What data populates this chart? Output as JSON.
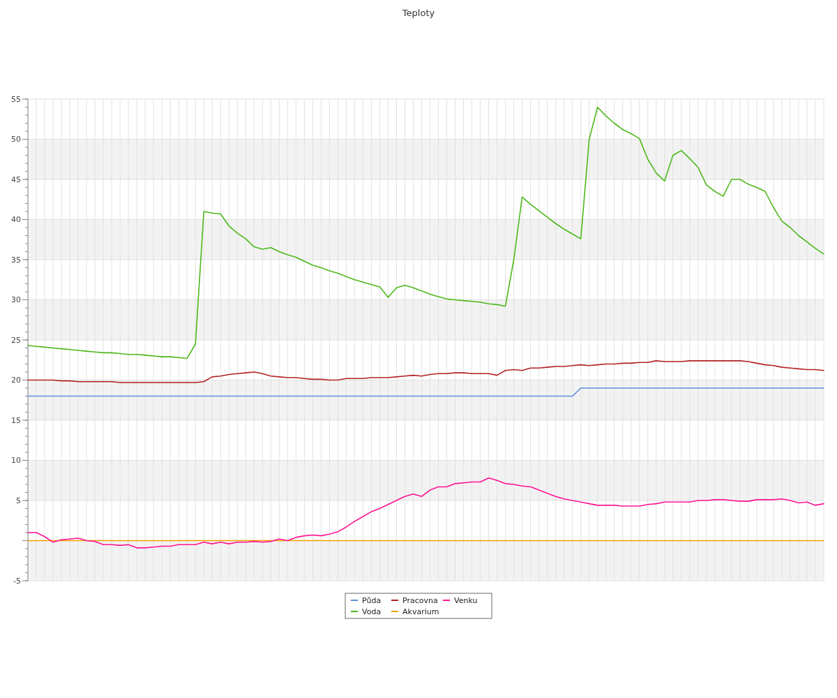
{
  "chart_data": {
    "type": "line",
    "title": "Teploty",
    "categories": [
      null,
      null,
      null,
      null,
      null,
      null,
      null,
      null,
      null,
      null,
      null,
      null,
      null,
      null,
      null,
      null,
      null,
      null,
      null,
      null,
      null,
      null,
      null,
      null,
      null,
      null,
      null,
      null,
      null,
      null,
      null,
      null,
      null,
      null,
      null,
      null,
      null,
      null,
      null,
      null,
      null,
      null,
      null,
      null,
      null,
      null,
      null,
      null,
      null,
      null,
      null,
      null,
      null,
      null,
      null,
      null,
      null,
      null,
      null,
      null,
      null,
      null,
      null,
      null,
      null,
      null,
      null,
      null,
      null,
      null,
      null,
      null,
      null,
      null,
      null,
      null,
      null,
      null,
      null,
      null,
      null,
      null,
      null,
      null,
      null,
      null,
      null,
      null,
      null,
      null,
      null,
      null,
      null,
      null,
      null,
      null
    ],
    "ylim": [
      -5,
      55
    ],
    "yticks": [
      -5,
      {
        "value": 0,
        "label": null
      },
      5,
      10,
      15,
      20,
      25,
      30,
      35,
      40,
      45,
      50,
      55
    ],
    "grid": true,
    "legend": "bottom",
    "marker": "none",
    "line_style": "solid",
    "series": [
      {
        "name": "Půda",
        "color": "#5b8fe0",
        "values": [
          18,
          18,
          18,
          18,
          18,
          18,
          18,
          18,
          18,
          18,
          18,
          18,
          18,
          18,
          18,
          18,
          18,
          18,
          18,
          18,
          18,
          18,
          18,
          18,
          18,
          18,
          18,
          18,
          18,
          18,
          18,
          18,
          18,
          18,
          18,
          18,
          18,
          18,
          18,
          18,
          18,
          18,
          18,
          18,
          18,
          18,
          18,
          18,
          18,
          18,
          18,
          18,
          18,
          18,
          18,
          18,
          18,
          18,
          18,
          18,
          18,
          18,
          18,
          18,
          18,
          18,
          19,
          19,
          19,
          19,
          19,
          19,
          19,
          19,
          19,
          19,
          19,
          19,
          19,
          19,
          19,
          19,
          19,
          19,
          19,
          19,
          19,
          19,
          19,
          19,
          19,
          19,
          19,
          19,
          19,
          19
        ]
      },
      {
        "name": "Voda",
        "color": "#4cb81a",
        "values": [
          24.3,
          24.2,
          24.1,
          24.0,
          23.9,
          23.8,
          23.7,
          23.6,
          23.5,
          23.4,
          23.4,
          23.3,
          23.2,
          23.2,
          23.1,
          23.0,
          22.9,
          22.9,
          22.8,
          22.7,
          24.5,
          41.0,
          40.8,
          40.7,
          39.2,
          38.3,
          37.6,
          36.6,
          36.3,
          36.5,
          36.0,
          35.6,
          35.3,
          34.8,
          34.3,
          34.0,
          33.6,
          33.3,
          32.9,
          32.5,
          32.2,
          31.9,
          31.6,
          30.3,
          31.5,
          31.8,
          31.5,
          31.1,
          30.7,
          30.4,
          30.1,
          30.0,
          29.9,
          29.8,
          29.7,
          29.5,
          29.4,
          29.2,
          35,
          42.8,
          41.9,
          41.1,
          40.3,
          39.5,
          38.8,
          38.2,
          37.6,
          50,
          54.0,
          52.9,
          52.0,
          51.2,
          50.7,
          50.1,
          47.5,
          45.8,
          44.8,
          48,
          48.6,
          47.6,
          46.5,
          44.3,
          43.5,
          42.9,
          45.0,
          45.0,
          44.4,
          44.0,
          43.5,
          41.5,
          39.8,
          39.0,
          38.0,
          37.2,
          36.4,
          35.7
        ]
      },
      {
        "name": "Pracovna",
        "color": "#b22222",
        "values": [
          20.0,
          20.0,
          20.0,
          20.0,
          19.9,
          19.9,
          19.8,
          19.8,
          19.8,
          19.8,
          19.8,
          19.7,
          19.7,
          19.7,
          19.7,
          19.7,
          19.7,
          19.7,
          19.7,
          19.7,
          19.7,
          19.8,
          20.4,
          20.5,
          20.7,
          20.8,
          20.9,
          21.0,
          20.8,
          20.5,
          20.4,
          20.3,
          20.3,
          20.2,
          20.1,
          20.1,
          20.0,
          20.0,
          20.2,
          20.2,
          20.2,
          20.3,
          20.3,
          20.3,
          20.4,
          20.5,
          20.6,
          20.5,
          20.7,
          20.8,
          20.8,
          20.9,
          20.9,
          20.8,
          20.8,
          20.8,
          20.6,
          21.2,
          21.3,
          21.2,
          21.5,
          21.5,
          21.6,
          21.7,
          21.7,
          21.8,
          21.9,
          21.8,
          21.9,
          22.0,
          22.0,
          22.1,
          22.1,
          22.2,
          22.2,
          22.4,
          22.3,
          22.3,
          22.3,
          22.4,
          22.4,
          22.4,
          22.4,
          22.4,
          22.4,
          22.4,
          22.3,
          22.1,
          21.9,
          21.8,
          21.6,
          21.5,
          21.4,
          21.3,
          21.3,
          21.2
        ]
      },
      {
        "name": "Akvarium",
        "color": "#f5a000",
        "values": [
          0,
          0,
          0,
          0,
          0,
          0,
          0,
          0,
          0,
          0,
          0,
          0,
          0,
          0,
          0,
          0,
          0,
          0,
          0,
          0,
          0,
          0,
          0,
          0,
          0,
          0,
          0,
          0,
          0,
          0,
          0,
          0,
          0,
          0,
          0,
          0,
          0,
          0,
          0,
          0,
          0,
          0,
          0,
          0,
          0,
          0,
          0,
          0,
          0,
          0,
          0,
          0,
          0,
          0,
          0,
          0,
          0,
          0,
          0,
          0,
          0,
          0,
          0,
          0,
          0,
          0,
          0,
          0,
          0,
          0,
          0,
          0,
          0,
          0,
          0,
          0,
          0,
          0,
          0,
          0,
          0,
          0,
          0,
          0,
          0,
          0,
          0,
          0,
          0,
          0,
          0,
          0,
          0,
          0,
          0,
          0
        ]
      },
      {
        "name": "Venku",
        "color": "#ff1493",
        "values": [
          1.0,
          1.0,
          0.5,
          -0.2,
          0.1,
          0.2,
          0.3,
          0.0,
          -0.1,
          -0.5,
          -0.5,
          -0.6,
          -0.5,
          -0.9,
          -0.9,
          -0.8,
          -0.7,
          -0.7,
          -0.5,
          -0.5,
          -0.5,
          -0.2,
          -0.4,
          -0.2,
          -0.4,
          -0.2,
          -0.2,
          -0.1,
          -0.2,
          -0.1,
          0.2,
          0.0,
          0.4,
          0.6,
          0.7,
          0.6,
          0.8,
          1.1,
          1.7,
          2.4,
          3.0,
          3.6,
          4.0,
          4.5,
          5.0,
          5.5,
          5.8,
          5.5,
          6.3,
          6.7,
          6.7,
          7.1,
          7.2,
          7.3,
          7.3,
          7.8,
          7.5,
          7.1,
          7.0,
          6.8,
          6.7,
          6.3,
          5.9,
          5.5,
          5.2,
          5.0,
          4.8,
          4.6,
          4.4,
          4.4,
          4.4,
          4.3,
          4.3,
          4.3,
          4.5,
          4.6,
          4.8,
          4.8,
          4.8,
          4.8,
          5.0,
          5.0,
          5.1,
          5.1,
          5.0,
          4.9,
          4.9,
          5.1,
          5.1,
          5.1,
          5.2,
          5.0,
          4.7,
          4.8,
          4.4,
          4.6
        ]
      }
    ]
  }
}
